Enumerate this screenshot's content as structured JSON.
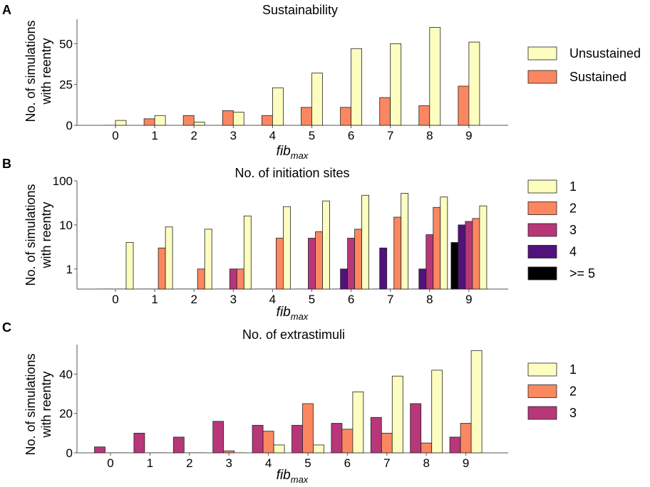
{
  "x_categories": [
    "0",
    "1",
    "2",
    "3",
    "4",
    "5",
    "6",
    "7",
    "8",
    "9"
  ],
  "xlabel_main": "fib",
  "xlabel_sub": "max",
  "ylabel_line1": "No. of simulations",
  "ylabel_line2": "with reentry",
  "chart_data": [
    {
      "panel": "A",
      "type": "bar",
      "title": "Sustainability",
      "scale": "linear",
      "ylim": [
        0,
        65
      ],
      "yticks": [
        0,
        25,
        50
      ],
      "series": [
        {
          "name": "Sustained",
          "color": "#fb8761",
          "values": [
            0,
            4,
            6,
            9,
            6,
            11,
            11,
            17,
            12,
            24
          ]
        },
        {
          "name": "Unsustained",
          "color": "#fcfdbf",
          "values": [
            3,
            6,
            2,
            8,
            23,
            32,
            47,
            50,
            60,
            51
          ]
        }
      ],
      "legend": [
        "Unsustained",
        "Sustained"
      ]
    },
    {
      "panel": "B",
      "type": "bar",
      "title": "No. of initiation sites",
      "scale": "log",
      "ylim": [
        0.35,
        100
      ],
      "yticks": [
        1,
        10,
        100
      ],
      "series": [
        {
          "name": ">= 5",
          "color": "#000004",
          "values": [
            0,
            0,
            0,
            0,
            0,
            0,
            0,
            0,
            0,
            4
          ]
        },
        {
          "name": "4",
          "color": "#51127c",
          "values": [
            0,
            0,
            0,
            0,
            0,
            0,
            1,
            3,
            1,
            10
          ]
        },
        {
          "name": "3",
          "color": "#b73779",
          "values": [
            0,
            0,
            0,
            1,
            0,
            5,
            5,
            0,
            6,
            12
          ]
        },
        {
          "name": "2",
          "color": "#fb8761",
          "values": [
            0,
            3,
            1,
            1,
            5,
            7,
            8,
            15,
            25,
            14
          ]
        },
        {
          "name": "1",
          "color": "#fcfdbf",
          "values": [
            4,
            9,
            8,
            16,
            26,
            35,
            47,
            52,
            43,
            27
          ]
        }
      ],
      "legend": [
        "1",
        "2",
        "3",
        "4",
        ">= 5"
      ]
    },
    {
      "panel": "C",
      "type": "bar",
      "title": "No. of extrastimuli",
      "scale": "linear",
      "ylim": [
        0,
        55
      ],
      "yticks": [
        0,
        20,
        40
      ],
      "series": [
        {
          "name": "3",
          "color": "#b73779",
          "values": [
            3,
            10,
            8,
            16,
            14,
            14,
            15,
            18,
            25,
            8
          ]
        },
        {
          "name": "2",
          "color": "#fb8761",
          "values": [
            0,
            0,
            0,
            1,
            11,
            25,
            12,
            10,
            5,
            15
          ]
        },
        {
          "name": "1",
          "color": "#fcfdbf",
          "values": [
            0,
            0,
            0,
            0,
            4,
            4,
            31,
            39,
            42,
            52
          ]
        }
      ],
      "legend": [
        "1",
        "2",
        "3"
      ]
    }
  ]
}
